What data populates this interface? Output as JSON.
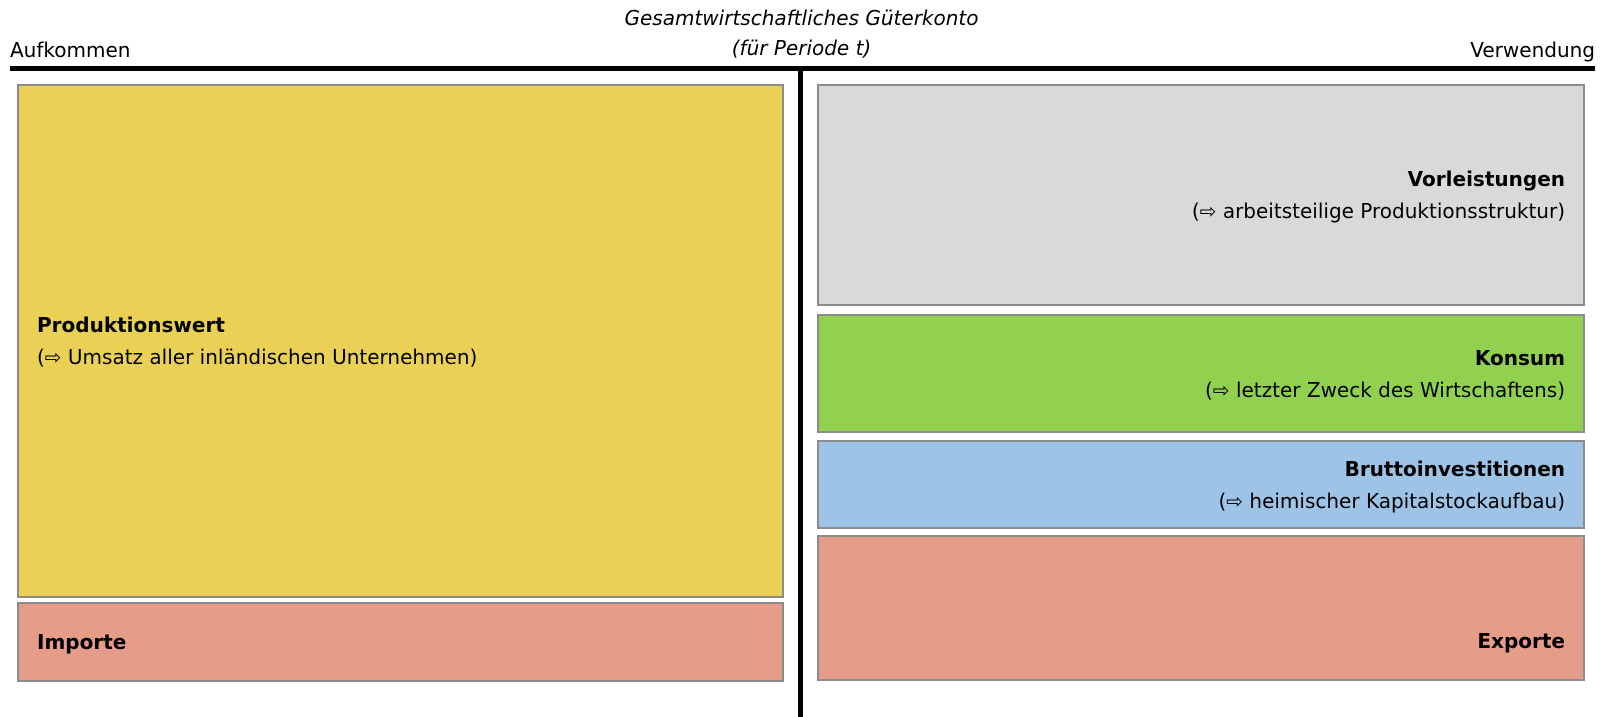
{
  "header": {
    "title": "Gesamtwirtschaftliches Güterkonto",
    "subtitle": "(für Periode t)",
    "left": "Aufkommen",
    "right": "Verwendung"
  },
  "left_boxes": [
    {
      "name": "Produktionswert",
      "description": "(⇨ Umsatz aller inländischen Unternehmen)"
    },
    {
      "name": "Importe"
    }
  ],
  "right_boxes": [
    {
      "name": "Vorleistungen",
      "description": "(⇨ arbeitsteilige Produktionsstruktur)"
    },
    {
      "name": "Konsum",
      "description": "(⇨ letzter Zweck des Wirtschaftens)"
    },
    {
      "name": "Bruttoinvestitionen",
      "description": "(⇨ heimischer Kapitalstockaufbau)"
    },
    {
      "name": "Exporte"
    }
  ]
}
